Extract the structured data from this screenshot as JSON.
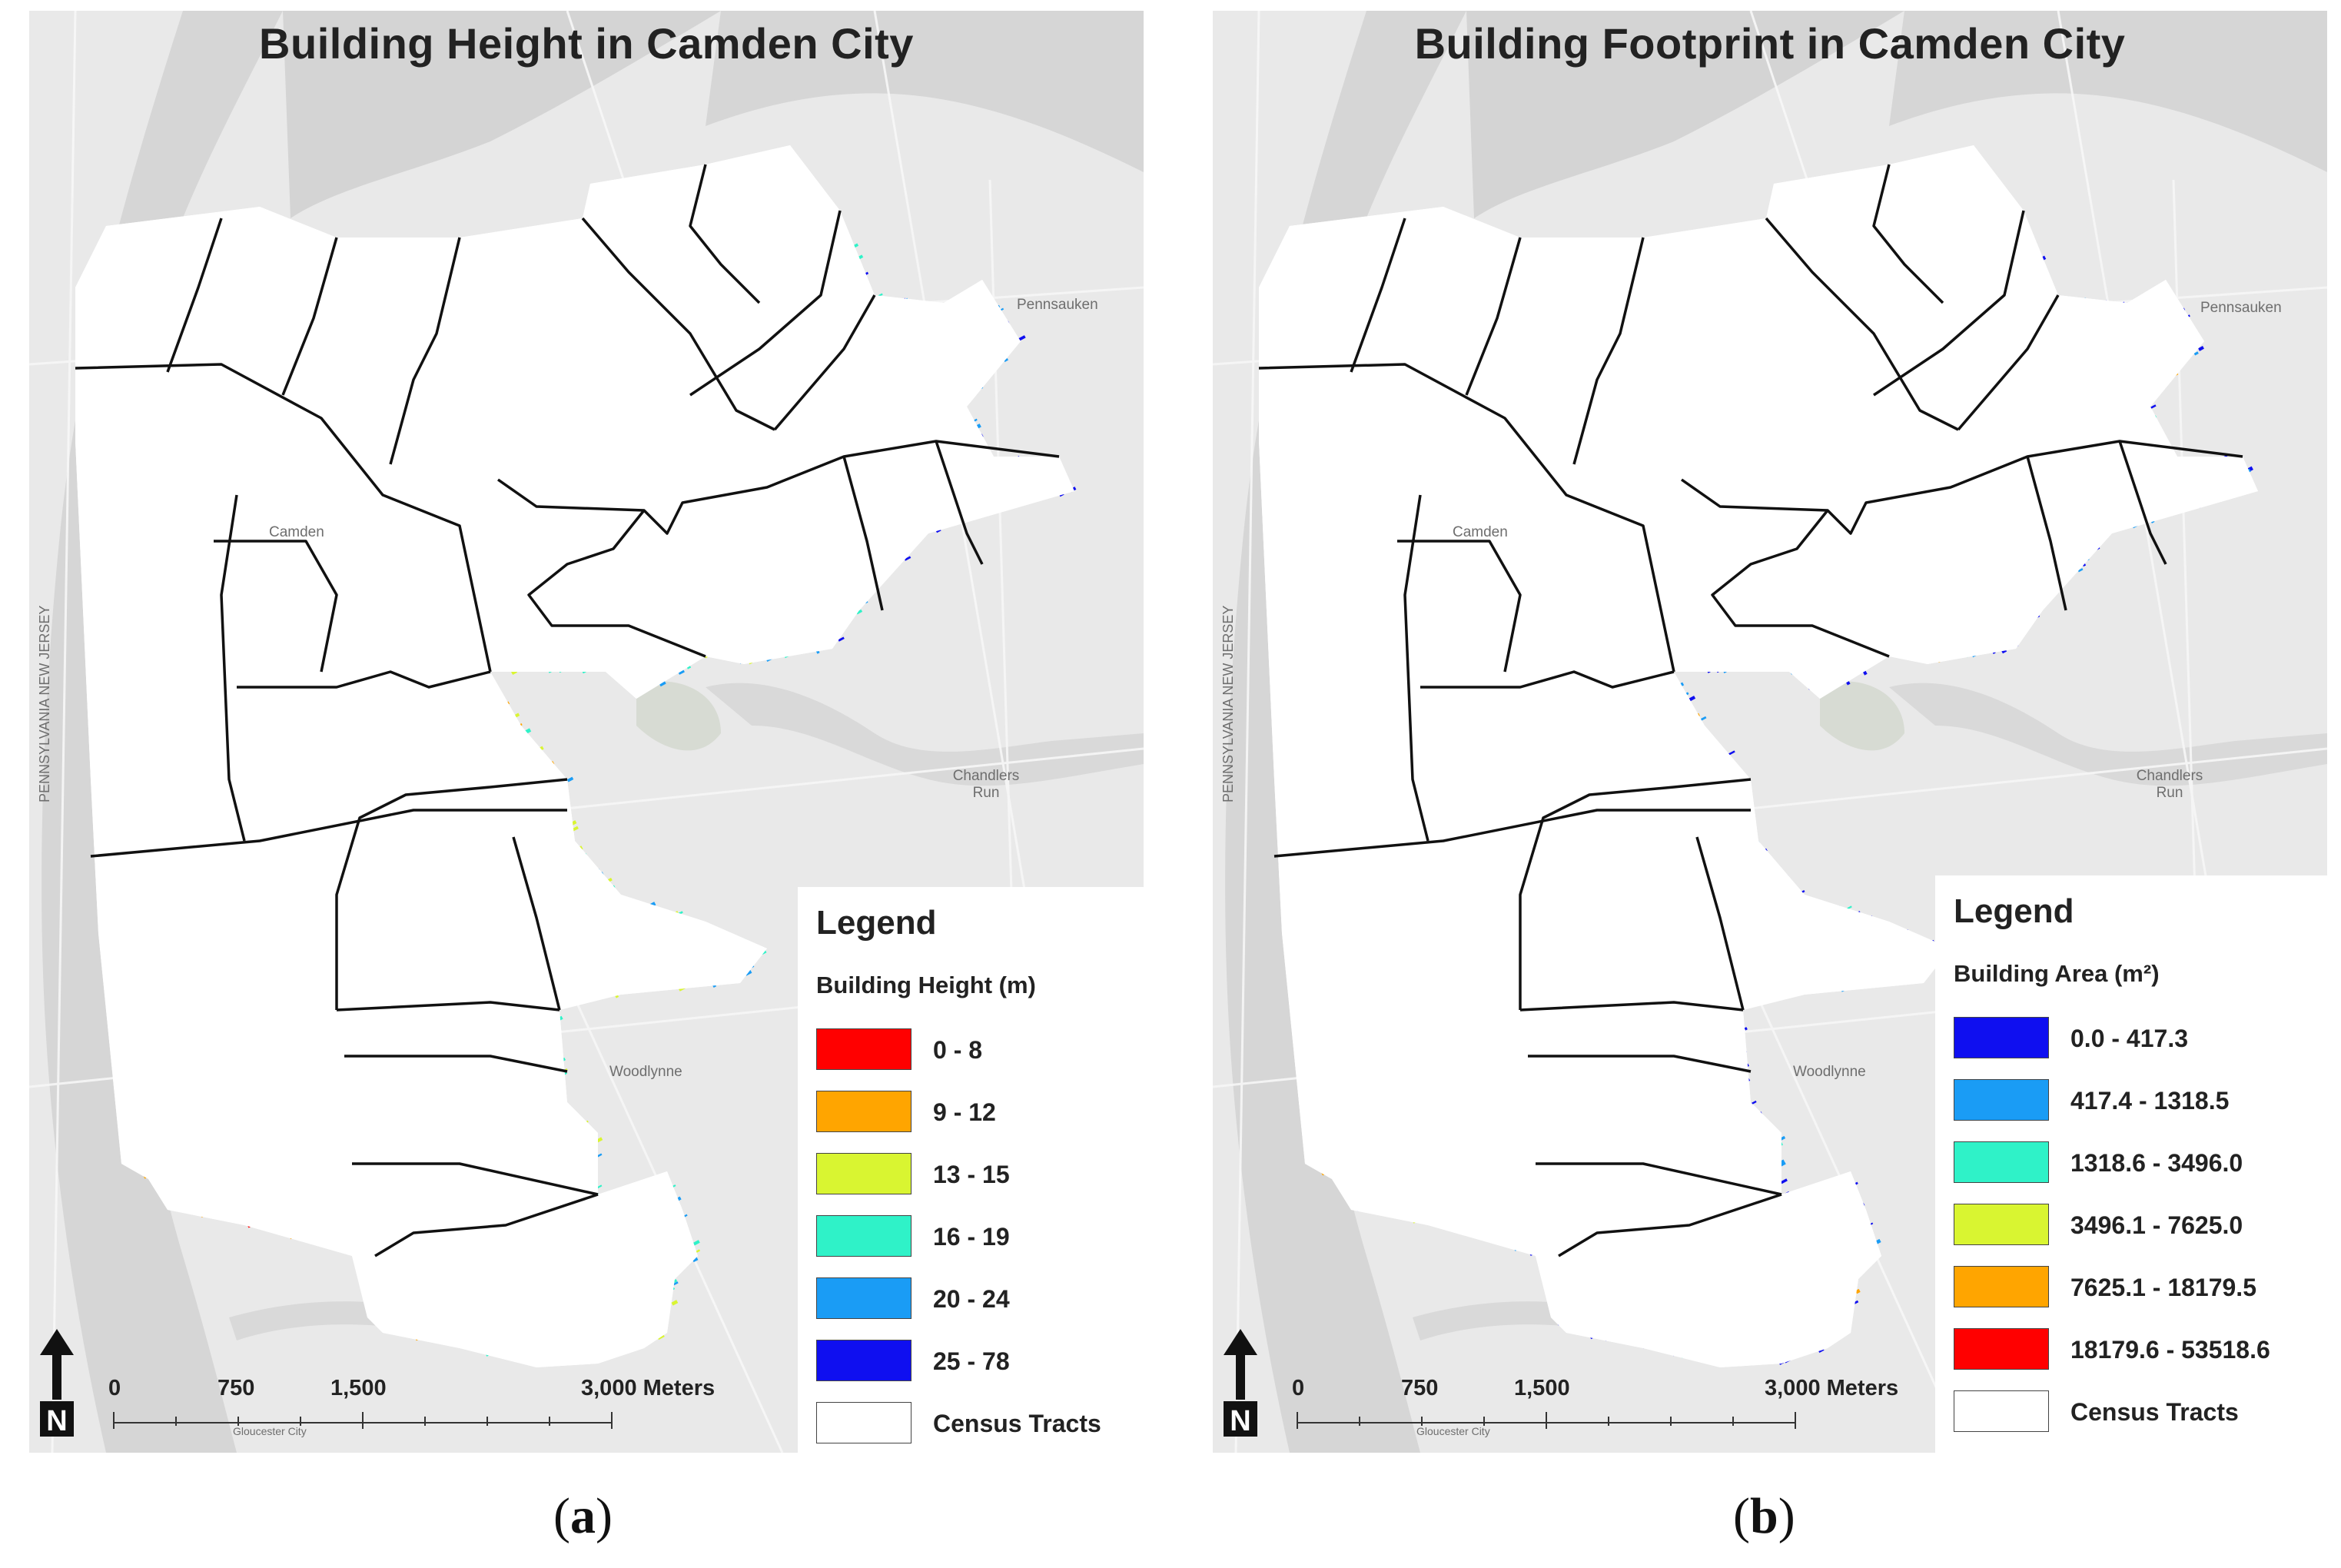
{
  "panels": [
    {
      "title": "Building Height in Camden City",
      "legend": {
        "heading": "Legend",
        "field": "Building Height (m)",
        "classes": [
          {
            "label": "0 - 8",
            "color": "#ff0000"
          },
          {
            "label": "9 - 12",
            "color": "#ffa500"
          },
          {
            "label": "13 - 15",
            "color": "#d9f531"
          },
          {
            "label": "16 - 19",
            "color": "#2ff2c8"
          },
          {
            "label": "20 - 24",
            "color": "#1a9cf5"
          },
          {
            "label": "25 - 78",
            "color": "#0f0ff0"
          }
        ],
        "outline_label": "Census Tracts"
      },
      "scale": {
        "ticks": [
          "0",
          "750",
          "1,500",
          "3,000 Meters"
        ]
      },
      "places": {
        "pennsauken": "Pennsauken",
        "camden": "Camden",
        "woodlynne": "Woodlynne",
        "chandlers": "Chandlers Run",
        "gloucester": "Gloucester City",
        "pa_nj": "PENNSYLVANIA NEW JERSEY"
      },
      "north": "N",
      "caption": {
        "open": "(",
        "letter": "a",
        "close": ")"
      }
    },
    {
      "title": "Building Footprint in Camden City",
      "legend": {
        "heading": "Legend",
        "field": "Building Area (m²)",
        "classes": [
          {
            "label": "0.0 - 417.3",
            "color": "#0f0ff0"
          },
          {
            "label": "417.4 - 1318.5",
            "color": "#1a9cf5"
          },
          {
            "label": "1318.6 - 3496.0",
            "color": "#2ff2c8"
          },
          {
            "label": "3496.1 - 7625.0",
            "color": "#d9f531"
          },
          {
            "label": "7625.1 - 18179.5",
            "color": "#ffa500"
          },
          {
            "label": "18179.6 - 53518.6",
            "color": "#ff0000"
          }
        ],
        "outline_label": "Census Tracts"
      },
      "scale": {
        "ticks": [
          "0",
          "750",
          "1,500",
          "3,000 Meters"
        ]
      },
      "places": {
        "pennsauken": "Pennsauken",
        "camden": "Camden",
        "woodlynne": "Woodlynne",
        "chandlers": "Chandlers Run",
        "gloucester": "Gloucester City",
        "pa_nj": "PENNSYLVANIA NEW JERSEY"
      },
      "north": "N",
      "caption": {
        "open": "(",
        "letter": "b",
        "close": ")"
      }
    }
  ]
}
